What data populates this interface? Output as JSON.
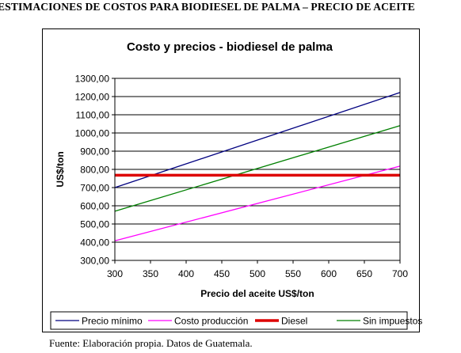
{
  "document": {
    "heading": "ESTIMACIONES DE COSTOS PARA BIODIESEL DE PALMA – PRECIO DE ACEITE",
    "source": "Fuente: Elaboración propia. Datos de Guatemala."
  },
  "chart_data": {
    "type": "line",
    "title": "Costo y precios - biodiesel de palma",
    "xlabel": "Precio del aceite US$/ton",
    "ylabel": "US$/ton",
    "xlim": [
      300,
      700
    ],
    "ylim": [
      300,
      1300
    ],
    "x_ticks": [
      300,
      350,
      400,
      450,
      500,
      550,
      600,
      650,
      700
    ],
    "y_ticks": [
      300,
      400,
      500,
      600,
      700,
      800,
      900,
      1000,
      1100,
      1200,
      1300
    ],
    "x_tick_labels": [
      "300",
      "350",
      "400",
      "450",
      "500",
      "550",
      "600",
      "650",
      "700"
    ],
    "y_tick_labels": [
      "300,00",
      "400,00",
      "500,00",
      "600,00",
      "700,00",
      "800,00",
      "900,00",
      "1000,00",
      "1100,00",
      "1200,00",
      "1300,00"
    ],
    "grid": "horizontal",
    "legend_position": "bottom",
    "series": [
      {
        "name": "Precio mínimo",
        "color": "#000080",
        "width": 1.3,
        "x": [
          300,
          700
        ],
        "y": [
          700,
          1222
        ]
      },
      {
        "name": "Costo producción",
        "color": "#ff00ff",
        "width": 1.3,
        "x": [
          300,
          700
        ],
        "y": [
          408,
          818
        ]
      },
      {
        "name": "Diesel",
        "color": "#dd0000",
        "width": 3.5,
        "x": [
          300,
          700
        ],
        "y": [
          768,
          768
        ]
      },
      {
        "name": "Sin impuestos",
        "color": "#008000",
        "width": 1.3,
        "x": [
          300,
          700
        ],
        "y": [
          570,
          1040
        ]
      }
    ]
  }
}
